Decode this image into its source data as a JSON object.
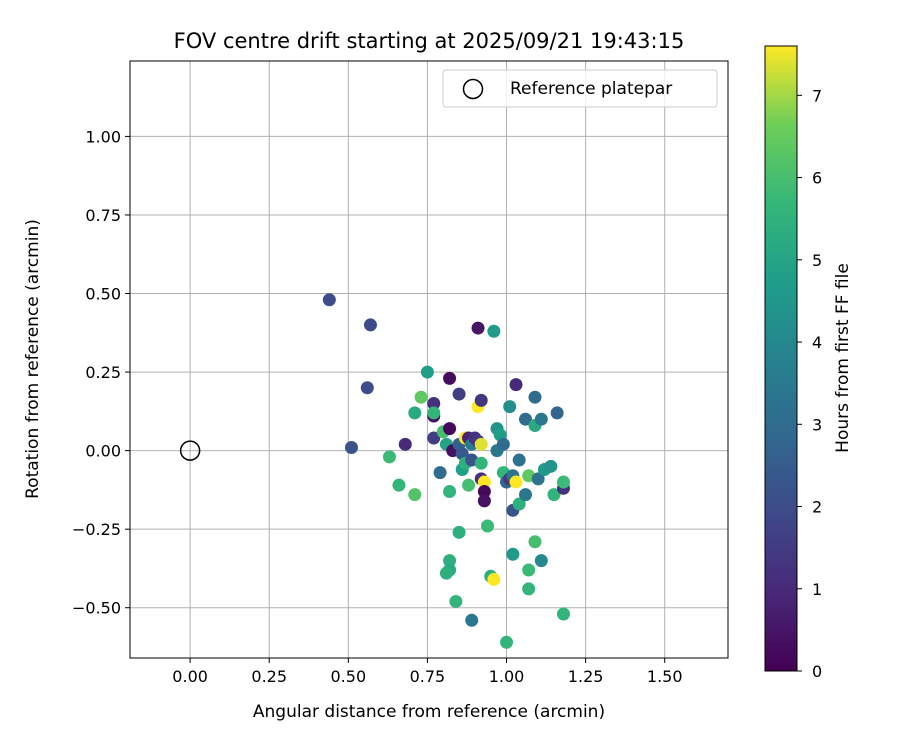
{
  "chart_data": {
    "type": "scatter",
    "title": "FOV centre drift starting at 2025/09/21 19:43:15",
    "xlabel": "Angular distance from reference (arcmin)",
    "ylabel": "Rotation from reference (arcmin)",
    "xlim": [
      -0.19,
      1.7
    ],
    "ylim": [
      -0.66,
      1.24
    ],
    "xticks": [
      0.0,
      0.25,
      0.5,
      0.75,
      1.0,
      1.25,
      1.5
    ],
    "xtick_labels": [
      "0.00",
      "0.25",
      "0.50",
      "0.75",
      "1.00",
      "1.25",
      "1.50"
    ],
    "yticks": [
      -0.5,
      -0.25,
      0.0,
      0.25,
      0.5,
      0.75,
      1.0
    ],
    "ytick_labels": [
      "−0.50",
      "−0.25",
      "0.00",
      "0.25",
      "0.50",
      "0.75",
      "1.00"
    ],
    "grid": true,
    "legend": {
      "position": "top-right",
      "entries": [
        "Reference platepar"
      ]
    },
    "reference_point": {
      "x": 0.0,
      "y": 0.0
    },
    "colorbar": {
      "label": "Hours from first FF file",
      "range": [
        0,
        7.6
      ],
      "ticks": [
        0,
        1,
        2,
        3,
        4,
        5,
        6,
        7
      ],
      "tick_labels": [
        "0",
        "1",
        "2",
        "3",
        "4",
        "5",
        "6",
        "7"
      ],
      "colormap": "viridis"
    },
    "points": [
      {
        "x": 0.44,
        "y": 0.48,
        "t": 2.0
      },
      {
        "x": 0.57,
        "y": 0.4,
        "t": 2.0
      },
      {
        "x": 0.56,
        "y": 0.2,
        "t": 2.0
      },
      {
        "x": 0.51,
        "y": 0.01,
        "t": 2.2
      },
      {
        "x": 0.68,
        "y": 0.02,
        "t": 1.0
      },
      {
        "x": 0.63,
        "y": -0.02,
        "t": 5.8
      },
      {
        "x": 0.66,
        "y": -0.11,
        "t": 5.6
      },
      {
        "x": 0.71,
        "y": -0.14,
        "t": 6.2
      },
      {
        "x": 0.71,
        "y": 0.12,
        "t": 5.2
      },
      {
        "x": 0.73,
        "y": 0.17,
        "t": 6.4
      },
      {
        "x": 0.75,
        "y": 0.25,
        "t": 4.8
      },
      {
        "x": 0.77,
        "y": 0.15,
        "t": 1.2
      },
      {
        "x": 0.77,
        "y": 0.11,
        "t": 0.3
      },
      {
        "x": 0.77,
        "y": 0.12,
        "t": 5.6
      },
      {
        "x": 0.77,
        "y": 0.04,
        "t": 1.6
      },
      {
        "x": 0.79,
        "y": -0.07,
        "t": 3.0
      },
      {
        "x": 0.8,
        "y": 0.06,
        "t": 6.0
      },
      {
        "x": 0.81,
        "y": 0.02,
        "t": 5.0
      },
      {
        "x": 0.82,
        "y": 0.07,
        "t": 0.2
      },
      {
        "x": 0.82,
        "y": 0.23,
        "t": 0.3
      },
      {
        "x": 0.82,
        "y": -0.13,
        "t": 5.6
      },
      {
        "x": 0.83,
        "y": 0.0,
        "t": 0.4
      },
      {
        "x": 0.85,
        "y": 0.18,
        "t": 1.6
      },
      {
        "x": 0.85,
        "y": 0.02,
        "t": 2.6
      },
      {
        "x": 0.86,
        "y": -0.01,
        "t": 2.4
      },
      {
        "x": 0.86,
        "y": -0.06,
        "t": 4.8
      },
      {
        "x": 0.87,
        "y": 0.04,
        "t": 7.6
      },
      {
        "x": 0.87,
        "y": -0.04,
        "t": 5.4
      },
      {
        "x": 0.88,
        "y": -0.11,
        "t": 6.0
      },
      {
        "x": 0.88,
        "y": 0.04,
        "t": 0.8
      },
      {
        "x": 0.89,
        "y": -0.03,
        "t": 2.2
      },
      {
        "x": 0.89,
        "y": 0.02,
        "t": 3.6
      },
      {
        "x": 0.9,
        "y": 0.04,
        "t": 1.2
      },
      {
        "x": 0.91,
        "y": 0.14,
        "t": 7.6
      },
      {
        "x": 0.91,
        "y": 0.39,
        "t": 0.5
      },
      {
        "x": 0.91,
        "y": 0.03,
        "t": 1.4
      },
      {
        "x": 0.92,
        "y": 0.16,
        "t": 1.4
      },
      {
        "x": 0.92,
        "y": -0.04,
        "t": 5.6
      },
      {
        "x": 0.92,
        "y": -0.09,
        "t": 1.2
      },
      {
        "x": 0.92,
        "y": 0.02,
        "t": 7.4
      },
      {
        "x": 0.93,
        "y": -0.1,
        "t": 7.6
      },
      {
        "x": 0.93,
        "y": -0.13,
        "t": 0.2
      },
      {
        "x": 0.93,
        "y": -0.16,
        "t": 0.4
      },
      {
        "x": 0.94,
        "y": -0.24,
        "t": 5.8
      },
      {
        "x": 0.95,
        "y": -0.4,
        "t": 5.4
      },
      {
        "x": 0.96,
        "y": 0.38,
        "t": 4.6
      },
      {
        "x": 0.96,
        "y": -0.41,
        "t": 7.6
      },
      {
        "x": 0.97,
        "y": 0.07,
        "t": 4.4
      },
      {
        "x": 0.97,
        "y": 0.0,
        "t": 3.4
      },
      {
        "x": 0.98,
        "y": 0.05,
        "t": 4.8
      },
      {
        "x": 0.99,
        "y": 0.02,
        "t": 3.0
      },
      {
        "x": 0.99,
        "y": -0.07,
        "t": 5.6
      },
      {
        "x": 1.0,
        "y": -0.1,
        "t": 2.8
      },
      {
        "x": 1.0,
        "y": -0.61,
        "t": 5.6
      },
      {
        "x": 1.01,
        "y": 0.14,
        "t": 4.2
      },
      {
        "x": 1.01,
        "y": -0.09,
        "t": 1.4
      },
      {
        "x": 1.02,
        "y": -0.19,
        "t": 2.2
      },
      {
        "x": 1.02,
        "y": -0.08,
        "t": 3.2
      },
      {
        "x": 1.02,
        "y": -0.33,
        "t": 4.6
      },
      {
        "x": 1.03,
        "y": 0.21,
        "t": 1.0
      },
      {
        "x": 1.03,
        "y": -0.1,
        "t": 7.6
      },
      {
        "x": 1.04,
        "y": -0.17,
        "t": 5.4
      },
      {
        "x": 1.04,
        "y": -0.03,
        "t": 3.2
      },
      {
        "x": 1.06,
        "y": 0.1,
        "t": 3.0
      },
      {
        "x": 1.06,
        "y": -0.14,
        "t": 3.4
      },
      {
        "x": 1.07,
        "y": -0.38,
        "t": 5.8
      },
      {
        "x": 1.07,
        "y": -0.44,
        "t": 5.6
      },
      {
        "x": 1.07,
        "y": -0.08,
        "t": 6.4
      },
      {
        "x": 1.09,
        "y": 0.17,
        "t": 3.0
      },
      {
        "x": 1.09,
        "y": 0.08,
        "t": 5.2
      },
      {
        "x": 1.09,
        "y": -0.29,
        "t": 6.0
      },
      {
        "x": 1.1,
        "y": -0.09,
        "t": 3.2
      },
      {
        "x": 1.11,
        "y": 0.1,
        "t": 3.4
      },
      {
        "x": 1.11,
        "y": -0.35,
        "t": 4.0
      },
      {
        "x": 1.12,
        "y": -0.06,
        "t": 4.6
      },
      {
        "x": 1.14,
        "y": -0.05,
        "t": 4.4
      },
      {
        "x": 1.15,
        "y": -0.14,
        "t": 5.6
      },
      {
        "x": 1.16,
        "y": 0.12,
        "t": 2.8
      },
      {
        "x": 1.18,
        "y": -0.12,
        "t": 1.2
      },
      {
        "x": 1.18,
        "y": -0.1,
        "t": 5.8
      },
      {
        "x": 1.18,
        "y": -0.52,
        "t": 5.6
      },
      {
        "x": 0.82,
        "y": -0.35,
        "t": 5.4
      },
      {
        "x": 0.82,
        "y": -0.38,
        "t": 5.2
      },
      {
        "x": 0.81,
        "y": -0.39,
        "t": 5.4
      },
      {
        "x": 0.84,
        "y": -0.48,
        "t": 5.6
      },
      {
        "x": 0.85,
        "y": -0.26,
        "t": 5.4
      },
      {
        "x": 0.89,
        "y": -0.54,
        "t": 3.4
      }
    ]
  }
}
